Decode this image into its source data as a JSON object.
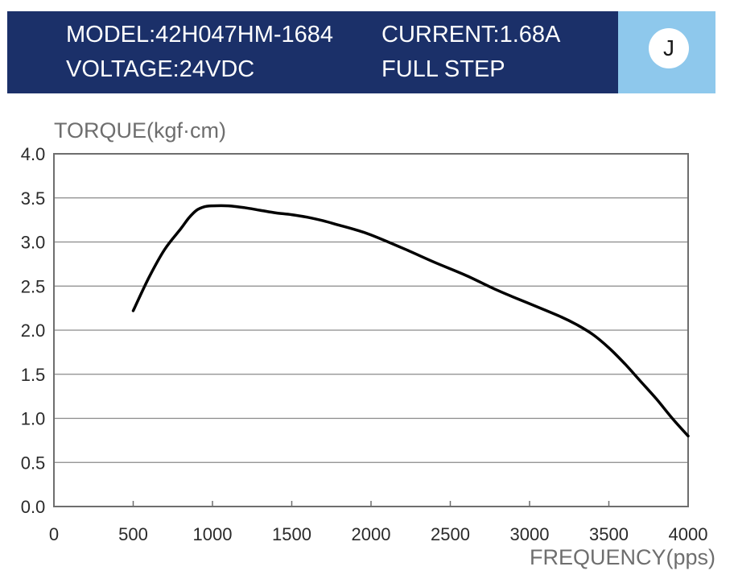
{
  "header": {
    "model": "MODEL:42H047HM-1684",
    "voltage": "VOLTAGE:24VDC",
    "current": "CURRENT:1.68A",
    "step": "FULL STEP",
    "badge": "J"
  },
  "colors": {
    "header_bg": "#1b3069",
    "badge_bg": "#8ec8ec",
    "curve": "#000000",
    "grid": "#8a8a8a",
    "axis_label": "#6e6e6e"
  },
  "chart_data": {
    "type": "line",
    "title": "",
    "ylabel": "TORQUE(kgf·cm)",
    "xlabel": "FREQUENCY(pps)",
    "xlim": [
      0,
      4000
    ],
    "ylim": [
      0,
      4.0
    ],
    "x_ticks": [
      "0",
      "500",
      "1000",
      "1500",
      "2000",
      "2500",
      "3000",
      "3500",
      "4000"
    ],
    "y_ticks": [
      "0.0",
      "0.5",
      "1.0",
      "1.5",
      "2.0",
      "2.5",
      "3.0",
      "3.5",
      "4.0"
    ],
    "grid": "horizontal",
    "series": [
      {
        "x": [
          500,
          600,
          700,
          800,
          850,
          900,
          950,
          1000,
          1100,
          1200,
          1300,
          1400,
          1500,
          1600,
          1700,
          1800,
          1900,
          2000,
          2200,
          2400,
          2600,
          2800,
          3000,
          3200,
          3300,
          3400,
          3500,
          3600,
          3700,
          3800,
          3900,
          4000
        ],
        "y": [
          2.22,
          2.6,
          2.92,
          3.15,
          3.27,
          3.36,
          3.4,
          3.41,
          3.41,
          3.39,
          3.36,
          3.33,
          3.31,
          3.28,
          3.24,
          3.19,
          3.14,
          3.08,
          2.93,
          2.77,
          2.62,
          2.45,
          2.3,
          2.15,
          2.06,
          1.95,
          1.8,
          1.62,
          1.42,
          1.22,
          1.0,
          0.8
        ]
      }
    ]
  }
}
